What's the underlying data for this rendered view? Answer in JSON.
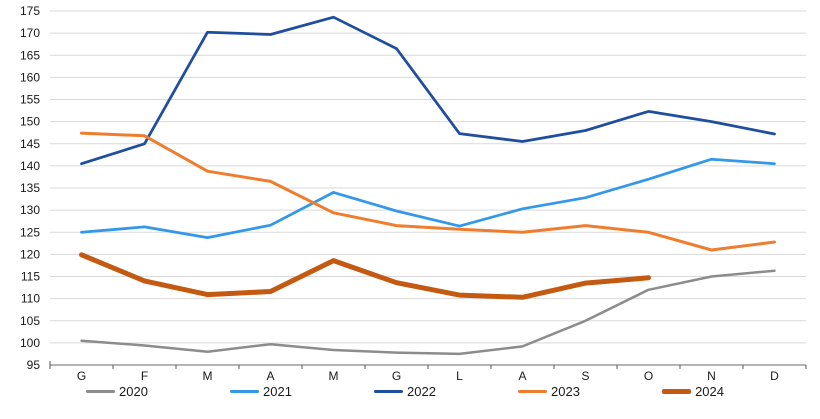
{
  "chart_data": {
    "type": "line",
    "title": "",
    "xlabel": "",
    "ylabel": "",
    "categories": [
      "G",
      "F",
      "M",
      "A",
      "M",
      "G",
      "L",
      "A",
      "S",
      "O",
      "N",
      "D"
    ],
    "y_tick_labels": [
      "95",
      "100",
      "105",
      "110",
      "115",
      "120",
      "125",
      "130",
      "135",
      "140",
      "145",
      "150",
      "155",
      "160",
      "165",
      "170",
      "175"
    ],
    "ylim": [
      95,
      175
    ],
    "ytick_step": 5,
    "grid": "horizontal",
    "legend_position": "bottom",
    "series": [
      {
        "name": "2020",
        "color": "#8C8C8C",
        "thickness": 2.5,
        "values": [
          100.5,
          99.4,
          98,
          99.7,
          98.4,
          97.8,
          97.5,
          99.2,
          105,
          112,
          115,
          116.3
        ]
      },
      {
        "name": "2021",
        "color": "#3398EA",
        "thickness": 2.75,
        "values": [
          125,
          126.2,
          123.8,
          126.6,
          134,
          129.8,
          126.4,
          130.3,
          132.8,
          137,
          141.5,
          140.5
        ]
      },
      {
        "name": "2022",
        "color": "#1F4E9F",
        "thickness": 2.75,
        "values": [
          140.5,
          145,
          170.2,
          169.7,
          173.6,
          166.5,
          147.3,
          145.5,
          148,
          152.3,
          150,
          147.2
        ]
      },
      {
        "name": "2023",
        "color": "#EF7D2E",
        "thickness": 3,
        "values": [
          147.4,
          146.8,
          138.8,
          136.5,
          129.4,
          126.5,
          125.7,
          125,
          126.5,
          125,
          121,
          122.8
        ]
      },
      {
        "name": "2024",
        "color": "#C45A11",
        "thickness": 5,
        "values": [
          119.9,
          114,
          110.9,
          111.6,
          118.6,
          113.6,
          110.8,
          110.3,
          113.5,
          114.7,
          null,
          null
        ]
      }
    ],
    "colors": {
      "gridline": "#D9D9D9",
      "axis": "#888888",
      "tick": "#555555",
      "text": "#1a1a1a"
    }
  }
}
